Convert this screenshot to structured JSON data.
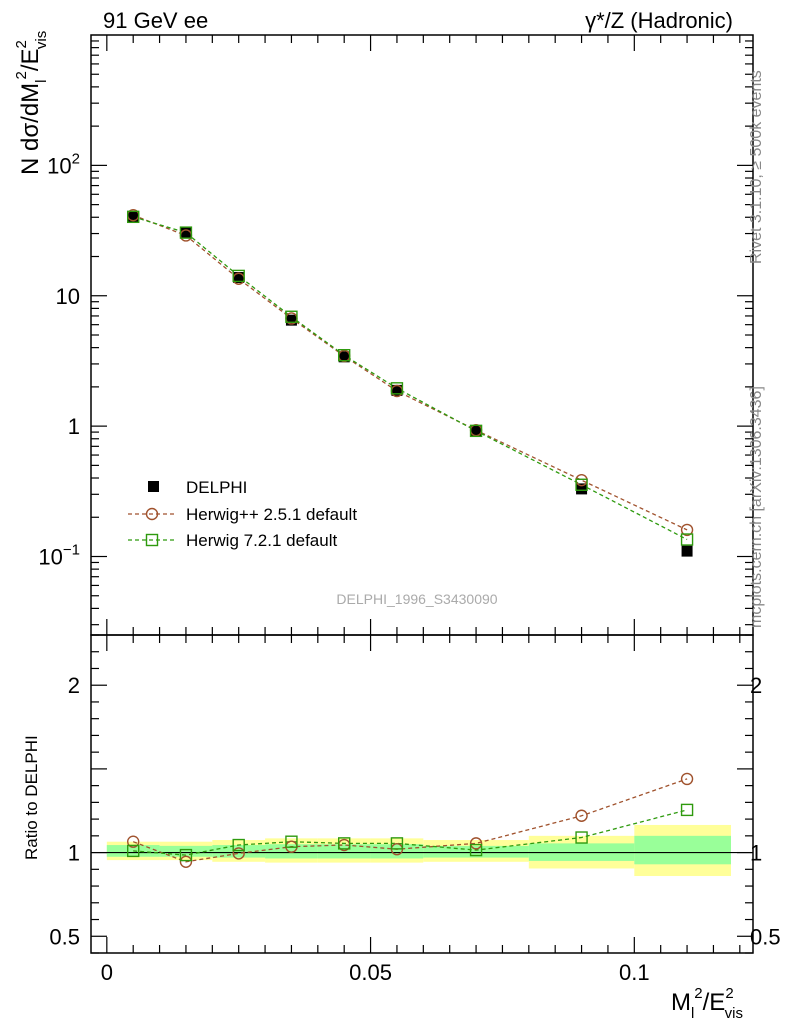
{
  "header": {
    "left": "91 GeV ee",
    "right": "γ*/Z (Hadronic)"
  },
  "side_labels": {
    "rivet": "Rivet 3.1.10, ≥ 500k events",
    "mcplots": "mcplots.cern.ch [arXiv:1306.3436]"
  },
  "analysis_label": "DELPHI_1996_S3430090",
  "main_ylabel": {
    "base": "N dσ/dM",
    "sub1": "l",
    "sup1": "2",
    "mid": "/E",
    "sup2": "2",
    "sub2": "vis"
  },
  "ratio_ylabel": "Ratio to DELPHI",
  "xlabel": {
    "base": "M",
    "sub1": "l",
    "sup1": "2",
    "mid": "/E",
    "sup2": "2",
    "sub2": "vis"
  },
  "x_ticks": [
    "0",
    "0.05",
    "0.1"
  ],
  "main_y_ticks": [
    {
      "v": 100,
      "base": "10",
      "exp": "2"
    },
    {
      "v": 10,
      "base": "10",
      "exp": ""
    },
    {
      "v": 1,
      "base": "1",
      "exp": ""
    },
    {
      "v": 0.1,
      "base": "10",
      "exp": "−1"
    }
  ],
  "ratio_y_ticks": [
    {
      "v": 2,
      "label": "2"
    },
    {
      "v": 1,
      "label": "1"
    },
    {
      "v": 0.5,
      "label": "0.5"
    }
  ],
  "legend": [
    {
      "label": "DELPHI",
      "style": "data"
    },
    {
      "label": "Herwig++ 2.5.1 default",
      "style": "circle"
    },
    {
      "label": "Herwig 7.2.1 default",
      "style": "square"
    }
  ],
  "colors": {
    "data": "#000000",
    "herwigpp": "#a0522d",
    "herwig7": "#2e9a0e",
    "band_stat": "#99ff99",
    "band_total": "#ffff99"
  },
  "chart_data": [
    {
      "type": "scatter",
      "panel": "main",
      "yscale": "log",
      "xlim": [
        -0.003,
        0.1225
      ],
      "ylim": [
        0.025,
        1000
      ],
      "x": [
        0.005,
        0.015,
        0.025,
        0.035,
        0.045,
        0.055,
        0.07,
        0.09,
        0.11
      ],
      "bin_edges": [
        0.0,
        0.01,
        0.02,
        0.03,
        0.04,
        0.05,
        0.06,
        0.08,
        0.1,
        0.12
      ],
      "series": [
        {
          "name": "DELPHI",
          "values": [
            40.0,
            30.5,
            13.8,
            6.5,
            3.4,
            1.88,
            0.92,
            0.33,
            0.11
          ]
        },
        {
          "name": "Herwig++ 2.5.1 default",
          "values": [
            41.5,
            29.0,
            13.5,
            6.7,
            3.45,
            1.86,
            0.93,
            0.385,
            0.16
          ]
        },
        {
          "name": "Herwig 7.2.1 default",
          "values": [
            40.3,
            30.5,
            14.2,
            6.9,
            3.5,
            1.95,
            0.92,
            0.355,
            0.135
          ]
        }
      ]
    },
    {
      "type": "scatter",
      "panel": "ratio",
      "ylabel": "Ratio to DELPHI",
      "ylim": [
        0.4,
        2.3
      ],
      "x": [
        0.005,
        0.015,
        0.025,
        0.035,
        0.045,
        0.055,
        0.07,
        0.09,
        0.11
      ],
      "bin_edges": [
        0.0,
        0.01,
        0.02,
        0.03,
        0.04,
        0.05,
        0.06,
        0.08,
        0.1,
        0.12
      ],
      "stat_band": [
        [
          0.975,
          1.045
        ],
        [
          0.975,
          1.04
        ],
        [
          0.97,
          1.045
        ],
        [
          0.965,
          1.05
        ],
        [
          0.965,
          1.05
        ],
        [
          0.965,
          1.05
        ],
        [
          0.97,
          1.04
        ],
        [
          0.95,
          1.055
        ],
        [
          0.93,
          1.1
        ]
      ],
      "total_band": [
        [
          0.955,
          1.065
        ],
        [
          0.955,
          1.065
        ],
        [
          0.945,
          1.075
        ],
        [
          0.94,
          1.085
        ],
        [
          0.94,
          1.085
        ],
        [
          0.94,
          1.085
        ],
        [
          0.945,
          1.075
        ],
        [
          0.905,
          1.1
        ],
        [
          0.86,
          1.165
        ]
      ],
      "series": [
        {
          "name": "Herwig++ 2.5.1 default",
          "values": [
            1.065,
            0.945,
            0.995,
            1.035,
            1.045,
            1.02,
            1.055,
            1.22,
            1.44
          ]
        },
        {
          "name": "Herwig 7.2.1 default",
          "values": [
            1.01,
            0.985,
            1.045,
            1.065,
            1.055,
            1.055,
            1.015,
            1.09,
            1.255
          ]
        }
      ]
    }
  ]
}
